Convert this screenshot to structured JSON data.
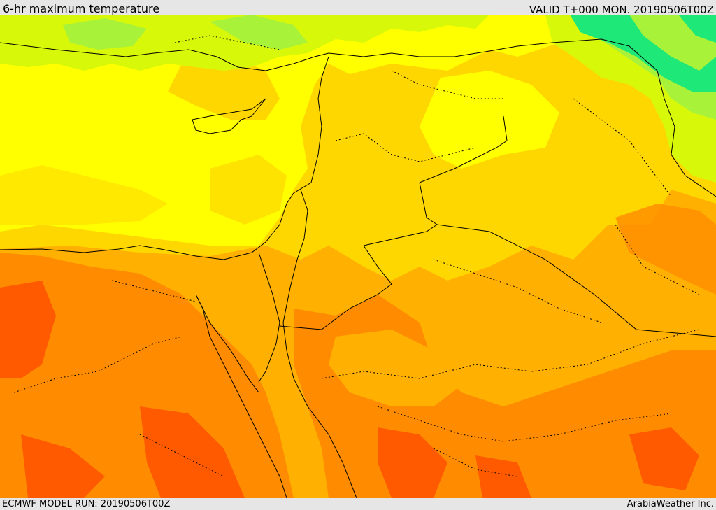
{
  "header": {
    "title": "6-hr maximum temperature",
    "valid": "VALID T+000 MON. 20190506T00Z"
  },
  "footer": {
    "model_run": "ECMWF MODEL RUN: 20190506T00Z",
    "credit": "ArabiaWeather Inc."
  },
  "colors": {
    "cool_green": "#1ee878",
    "light_green": "#a8f23a",
    "lime": "#d8f80a",
    "yellow": "#ffff00",
    "gold": "#ffd700",
    "amber": "#ffb000",
    "orange": "#ff8c00",
    "deep_orange": "#ff5a00",
    "border": "#000000"
  }
}
